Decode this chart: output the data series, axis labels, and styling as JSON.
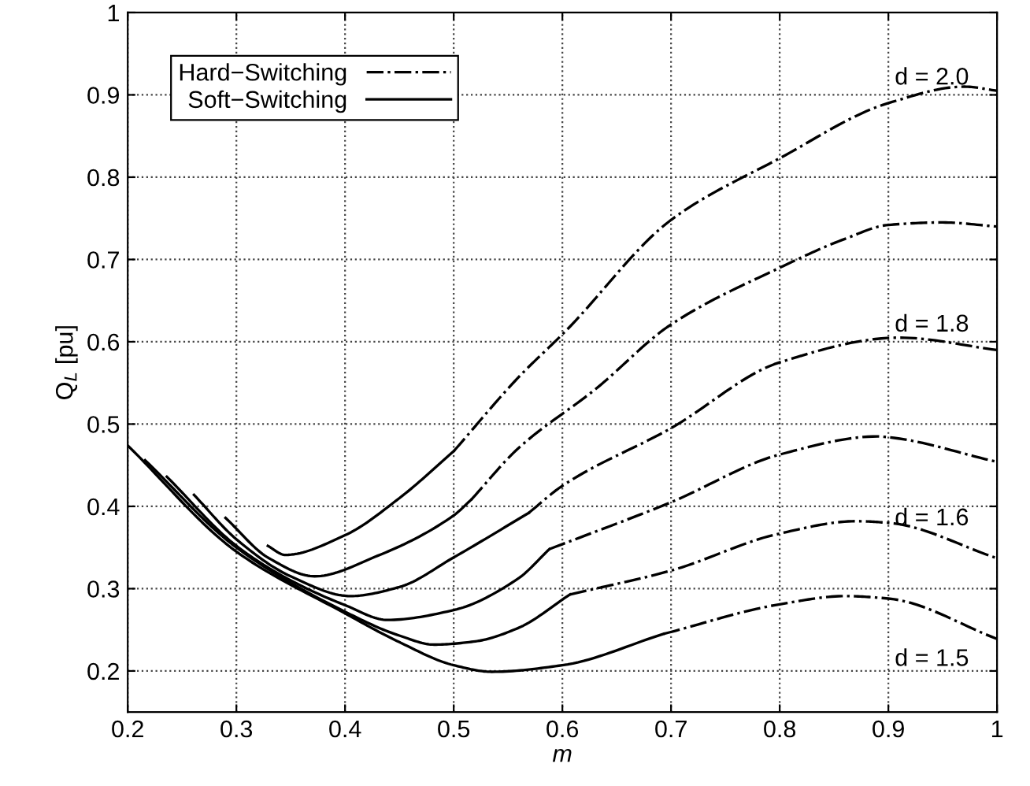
{
  "chart_data": {
    "type": "line",
    "xlabel": "m",
    "ylabel": "Q$_{L}$ [pu]",
    "xlim": [
      0.2,
      1
    ],
    "ylim": [
      0.15,
      1
    ],
    "xticks": [
      0.2,
      0.3,
      0.4,
      0.5,
      0.6,
      0.7,
      0.8,
      0.9,
      1
    ],
    "yticks": [
      0.2,
      0.3,
      0.4,
      0.5,
      0.6,
      0.7,
      0.8,
      0.9,
      1
    ],
    "grid": true,
    "legend": "top left",
    "marker": "none",
    "series": [
      {
        "name": "Hard−Switching",
        "color": "#000000",
        "line_style": "dashdot",
        "x": [
          0.5,
          0.559,
          0.603,
          0.7,
          0.8,
          0.9,
          0.97,
          1.0
        ],
        "values": [
          0.467,
          0.556,
          0.613,
          0.748,
          0.823,
          0.89,
          0.91,
          0.905
        ]
      },
      {
        "name": "Soft−Switching",
        "color": "#000000",
        "line_style": "solid",
        "x": [
          0.329,
          0.345,
          0.4,
          0.45,
          0.5
        ],
        "values": [
          0.352,
          0.341,
          0.365,
          0.41,
          0.467
        ]
      },
      {
        "color": "#000000",
        "line_style": "solid",
        "x": [
          0.29,
          0.33,
          0.372,
          0.43,
          0.5,
          0.516
        ],
        "values": [
          0.386,
          0.337,
          0.315,
          0.34,
          0.389,
          0.408
        ]
      },
      {
        "color": "#000000",
        "line_style": "dashdot",
        "x": [
          0.516,
          0.559,
          0.631,
          0.7,
          0.8,
          0.86,
          0.9,
          0.95,
          1.0
        ],
        "values": [
          0.408,
          0.47,
          0.543,
          0.621,
          0.69,
          0.725,
          0.742,
          0.745,
          0.74
        ]
      },
      {
        "color": "#000000",
        "line_style": "solid",
        "x": [
          0.261,
          0.3,
          0.35,
          0.405,
          0.45,
          0.5,
          0.569
        ],
        "values": [
          0.414,
          0.36,
          0.315,
          0.291,
          0.302,
          0.338,
          0.392
        ]
      },
      {
        "color": "#000000",
        "line_style": "dashdot",
        "x": [
          0.569,
          0.6,
          0.7,
          0.8,
          0.91,
          1.0
        ],
        "values": [
          0.392,
          0.425,
          0.495,
          0.575,
          0.605,
          0.59
        ]
      },
      {
        "color": "#000000",
        "line_style": "solid",
        "x": [
          0.236,
          0.3,
          0.35,
          0.4,
          0.439,
          0.5,
          0.559,
          0.588
        ],
        "values": [
          0.436,
          0.352,
          0.31,
          0.28,
          0.262,
          0.274,
          0.312,
          0.348
        ]
      },
      {
        "color": "#000000",
        "line_style": "dashdot",
        "x": [
          0.588,
          0.7,
          0.8,
          0.89,
          0.9,
          1.0
        ],
        "values": [
          0.348,
          0.405,
          0.463,
          0.485,
          0.484,
          0.454
        ]
      },
      {
        "color": "#000000",
        "line_style": "solid",
        "x": [
          0.216,
          0.3,
          0.4,
          0.45,
          0.482,
          0.52,
          0.559,
          0.607
        ],
        "values": [
          0.456,
          0.35,
          0.272,
          0.243,
          0.232,
          0.236,
          0.252,
          0.293
        ]
      },
      {
        "color": "#000000",
        "line_style": "dashdot",
        "x": [
          0.607,
          0.7,
          0.8,
          0.87,
          0.9,
          1.0
        ],
        "values": [
          0.293,
          0.322,
          0.367,
          0.382,
          0.38,
          0.337
        ]
      },
      {
        "color": "#000000",
        "line_style": "solid",
        "x": [
          0.2,
          0.3,
          0.4,
          0.45,
          0.5,
          0.535,
          0.6,
          0.693
        ],
        "values": [
          0.474,
          0.345,
          0.27,
          0.235,
          0.207,
          0.199,
          0.207,
          0.245
        ]
      },
      {
        "color": "#000000",
        "line_style": "dashdot",
        "x": [
          0.693,
          0.8,
          0.86,
          0.9,
          1.0
        ],
        "values": [
          0.245,
          0.281,
          0.291,
          0.288,
          0.239
        ]
      }
    ],
    "annotations": [
      "d = 2.0",
      "d = 1.8",
      "d = 1.6",
      "d = 1.5"
    ]
  }
}
